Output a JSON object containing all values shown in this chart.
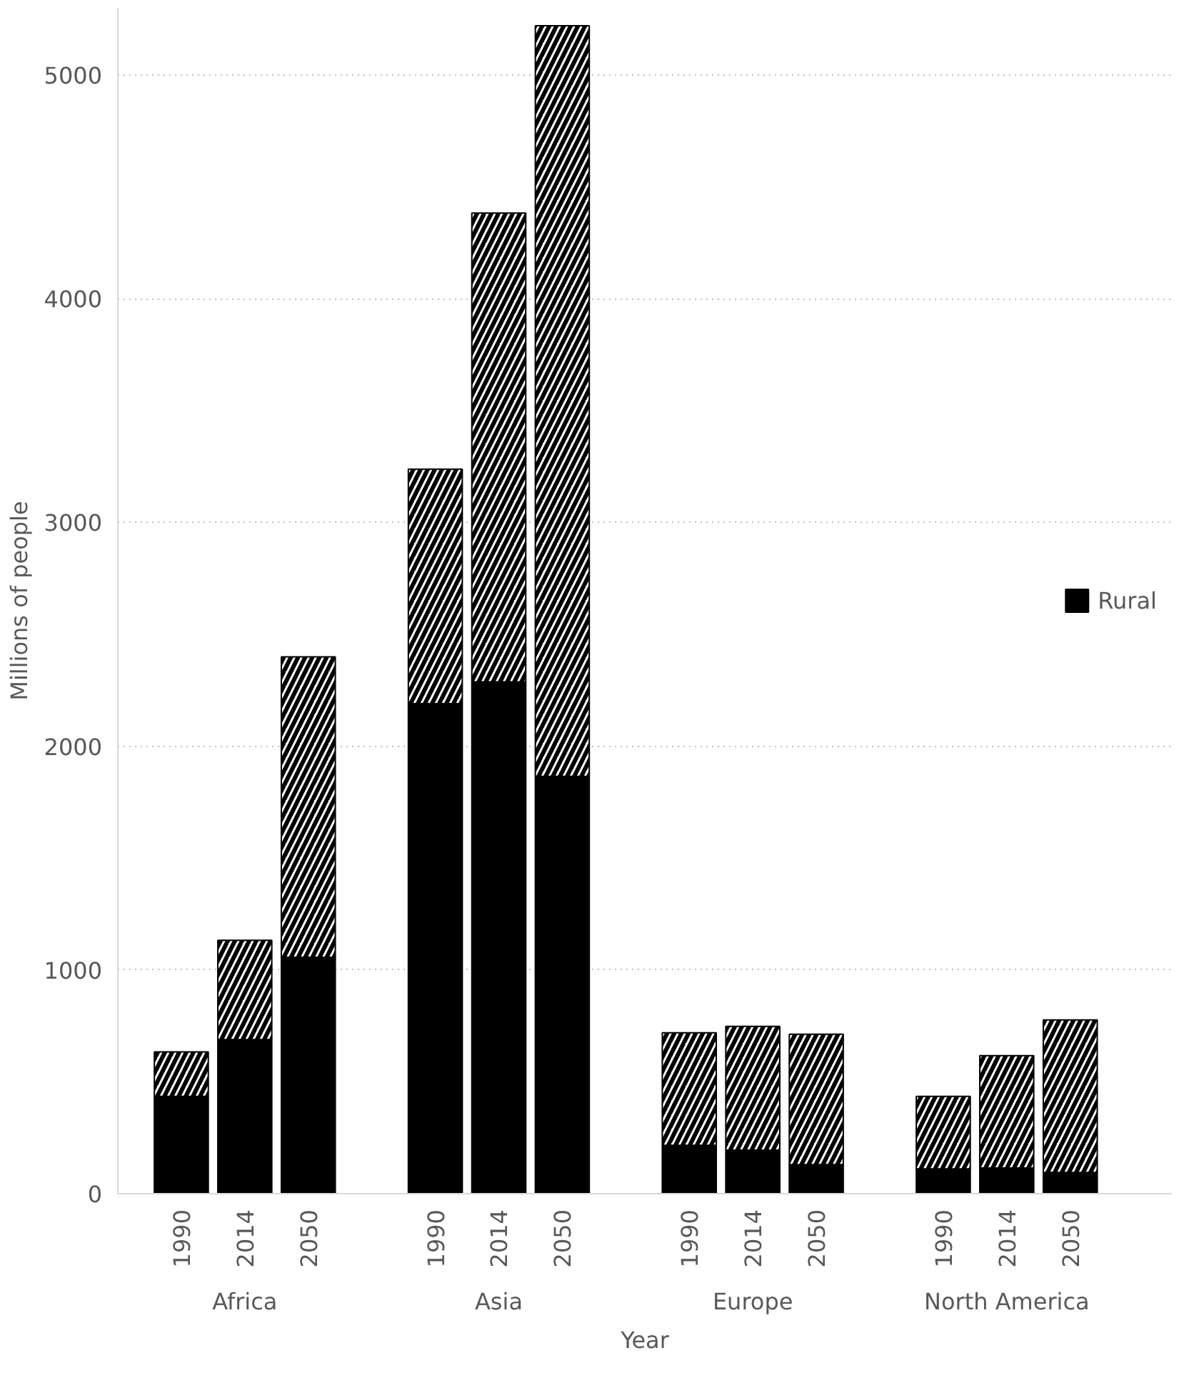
{
  "chart_data": {
    "type": "bar",
    "stacked": true,
    "ylabel": "Millions of people",
    "xlabel": "Year",
    "categories": [
      "1990",
      "2014",
      "2050",
      "1990",
      "2014",
      "2050",
      "1990",
      "2014",
      "2050",
      "1990",
      "2014",
      "2050"
    ],
    "annotations": [
      "Africa",
      "Asia",
      "Europe",
      "North America"
    ],
    "series": [
      {
        "name": "Rural",
        "color": "#000000",
        "values": [
          435,
          689,
          1057,
          2190,
          2288,
          1865,
          216,
          195,
          130,
          111,
          115,
          95
        ]
      },
      {
        "color": "#ffffff",
        "values": [
          199,
          444,
          1342,
          1048,
          2095,
          3355,
          503,
          553,
          583,
          324,
          502,
          682
        ]
      }
    ],
    "ylim": [
      0,
      5300
    ],
    "yticks": [
      0,
      1000,
      2000,
      3000,
      4000,
      5000
    ],
    "grid": "y",
    "legend": "right"
  }
}
